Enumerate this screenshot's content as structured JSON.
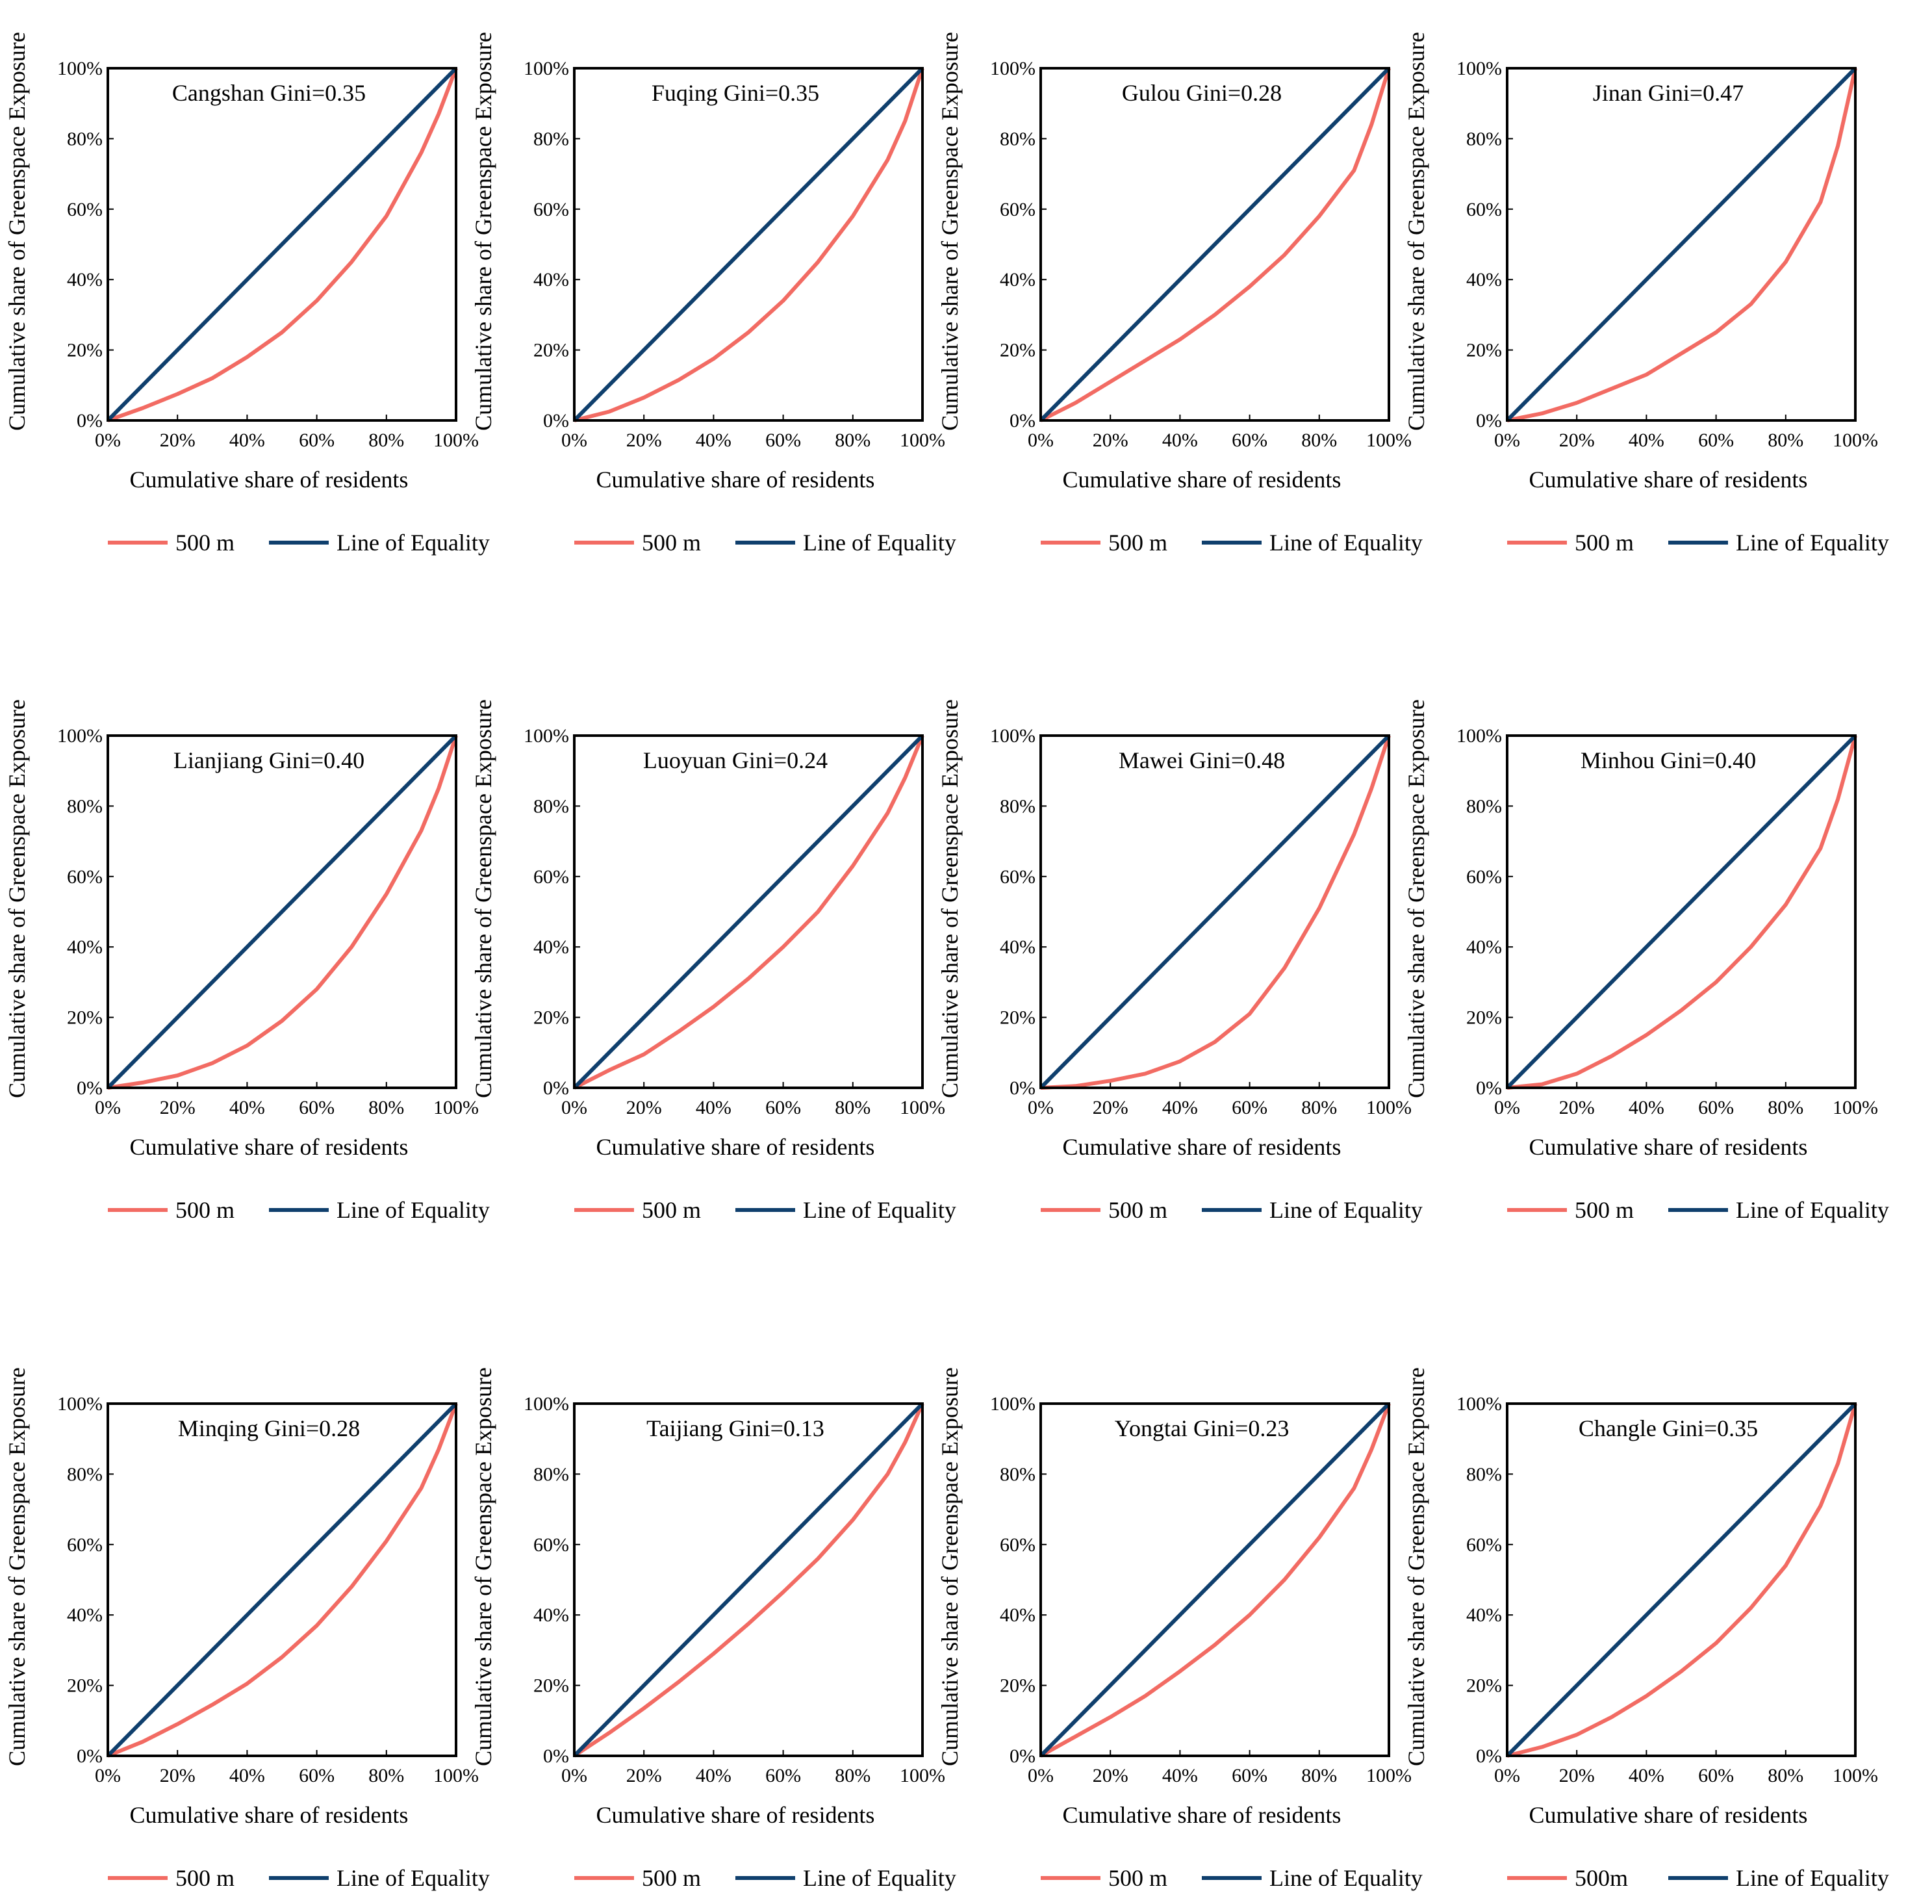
{
  "figure": {
    "colors": {
      "lorenz": "#F26B63",
      "equality": "#0F3F6D",
      "axis": "#000000",
      "background": "#ffffff"
    },
    "tick_labels": [
      "0%",
      "20%",
      "40%",
      "60%",
      "80%",
      "100%"
    ],
    "xlabel": "Cumulative share of  residents",
    "ylabel": "Cumulative share of  Greenspace Exposure",
    "legend_equality_label": "Line of  Equality"
  },
  "chart_data": [
    {
      "type": "line",
      "title": "Cangshan Gini=0.35",
      "legend_label": "500 m",
      "xlabel": "Cumulative share of  residents",
      "ylabel": "Cumulative share of  Greenspace Exposure",
      "xlim": [
        0,
        100
      ],
      "ylim": [
        0,
        100
      ],
      "legend_position": "bottom",
      "grid": false,
      "series": [
        {
          "name": "500 m",
          "x": [
            0,
            10,
            20,
            30,
            40,
            50,
            60,
            70,
            80,
            90,
            95,
            100
          ],
          "y": [
            0,
            3.5,
            7.5,
            12,
            18,
            25,
            34,
            45,
            58,
            76,
            87,
            100
          ]
        },
        {
          "name": "Line of  Equality",
          "x": [
            0,
            100
          ],
          "y": [
            0,
            100
          ]
        }
      ]
    },
    {
      "type": "line",
      "title": "Fuqing Gini=0.35",
      "legend_label": "500 m",
      "xlabel": "Cumulative share of  residents",
      "ylabel": "Cumulative share of  Greenspace Exposure",
      "xlim": [
        0,
        100
      ],
      "ylim": [
        0,
        100
      ],
      "legend_position": "bottom",
      "grid": false,
      "series": [
        {
          "name": "500 m",
          "x": [
            0,
            10,
            20,
            30,
            40,
            50,
            60,
            70,
            80,
            90,
            95,
            100
          ],
          "y": [
            0,
            2.5,
            6.5,
            11.5,
            17.5,
            25,
            34,
            45,
            58,
            74,
            85,
            100
          ]
        },
        {
          "name": "Line of  Equality",
          "x": [
            0,
            100
          ],
          "y": [
            0,
            100
          ]
        }
      ]
    },
    {
      "type": "line",
      "title": "Gulou Gini=0.28",
      "legend_label": "500 m",
      "xlabel": "Cumulative share of  residents",
      "ylabel": "Cumulative share of  Greenspace Exposure",
      "xlim": [
        0,
        100
      ],
      "ylim": [
        0,
        100
      ],
      "legend_position": "bottom",
      "grid": false,
      "series": [
        {
          "name": "500 m",
          "x": [
            0,
            10,
            20,
            30,
            40,
            50,
            60,
            70,
            80,
            90,
            95,
            100
          ],
          "y": [
            0,
            5,
            11,
            17,
            23,
            30,
            38,
            47,
            58,
            71,
            84,
            100
          ]
        },
        {
          "name": "Line of  Equality",
          "x": [
            0,
            100
          ],
          "y": [
            0,
            100
          ]
        }
      ]
    },
    {
      "type": "line",
      "title": "Jinan Gini=0.47",
      "legend_label": "500 m",
      "xlabel": "Cumulative share of  residents",
      "ylabel": "Cumulative share of  Greenspace Exposure",
      "xlim": [
        0,
        100
      ],
      "ylim": [
        0,
        100
      ],
      "legend_position": "bottom",
      "grid": false,
      "series": [
        {
          "name": "500 m",
          "x": [
            0,
            10,
            20,
            30,
            40,
            50,
            60,
            70,
            80,
            90,
            95,
            100
          ],
          "y": [
            0,
            2,
            5,
            9,
            13,
            19,
            25,
            33,
            45,
            62,
            78,
            100
          ]
        },
        {
          "name": "Line of  Equality",
          "x": [
            0,
            100
          ],
          "y": [
            0,
            100
          ]
        }
      ]
    },
    {
      "type": "line",
      "title": "Lianjiang Gini=0.40",
      "legend_label": "500 m",
      "xlabel": "Cumulative share of  residents",
      "ylabel": "Cumulative share of  Greenspace Exposure",
      "xlim": [
        0,
        100
      ],
      "ylim": [
        0,
        100
      ],
      "legend_position": "bottom",
      "grid": false,
      "series": [
        {
          "name": "500 m",
          "x": [
            0,
            10,
            20,
            30,
            40,
            50,
            60,
            70,
            80,
            90,
            95,
            100
          ],
          "y": [
            0,
            1.5,
            3.5,
            7,
            12,
            19,
            28,
            40,
            55,
            73,
            85,
            100
          ]
        },
        {
          "name": "Line of  Equality",
          "x": [
            0,
            100
          ],
          "y": [
            0,
            100
          ]
        }
      ]
    },
    {
      "type": "line",
      "title": "Luoyuan Gini=0.24",
      "legend_label": "500 m",
      "xlabel": "Cumulative share of  residents",
      "ylabel": "Cumulative share of  Greenspace Exposure",
      "xlim": [
        0,
        100
      ],
      "ylim": [
        0,
        100
      ],
      "legend_position": "bottom",
      "grid": false,
      "series": [
        {
          "name": "500 m",
          "x": [
            0,
            10,
            20,
            30,
            40,
            50,
            60,
            70,
            80,
            90,
            95,
            100
          ],
          "y": [
            0,
            5,
            9.5,
            16,
            23,
            31,
            40,
            50,
            63,
            78,
            88,
            100
          ]
        },
        {
          "name": "Line of  Equality",
          "x": [
            0,
            100
          ],
          "y": [
            0,
            100
          ]
        }
      ]
    },
    {
      "type": "line",
      "title": "Mawei Gini=0.48",
      "legend_label": "500 m",
      "xlabel": "Cumulative share of  residents",
      "ylabel": "Cumulative share of  Greenspace Exposure",
      "xlim": [
        0,
        100
      ],
      "ylim": [
        0,
        100
      ],
      "legend_position": "bottom",
      "grid": false,
      "series": [
        {
          "name": "500 m",
          "x": [
            0,
            10,
            20,
            30,
            40,
            50,
            60,
            70,
            80,
            90,
            95,
            100
          ],
          "y": [
            0,
            0.5,
            2,
            4,
            7.5,
            13,
            21,
            34,
            51,
            72,
            85,
            100
          ]
        },
        {
          "name": "Line of  Equality",
          "x": [
            0,
            100
          ],
          "y": [
            0,
            100
          ]
        }
      ]
    },
    {
      "type": "line",
      "title": "Minhou Gini=0.40",
      "legend_label": "500 m",
      "xlabel": "Cumulative share of  residents",
      "ylabel": "Cumulative share of  Greenspace Exposure",
      "xlim": [
        0,
        100
      ],
      "ylim": [
        0,
        100
      ],
      "legend_position": "bottom",
      "grid": false,
      "series": [
        {
          "name": "500 m",
          "x": [
            0,
            10,
            20,
            30,
            40,
            50,
            60,
            70,
            80,
            90,
            95,
            100
          ],
          "y": [
            0,
            1,
            4,
            9,
            15,
            22,
            30,
            40,
            52,
            68,
            82,
            100
          ]
        },
        {
          "name": "Line of  Equality",
          "x": [
            0,
            100
          ],
          "y": [
            0,
            100
          ]
        }
      ]
    },
    {
      "type": "line",
      "title": "Minqing Gini=0.28",
      "legend_label": "500 m",
      "xlabel": "Cumulative share of  residents",
      "ylabel": "Cumulative share of  Greenspace Exposure",
      "xlim": [
        0,
        100
      ],
      "ylim": [
        0,
        100
      ],
      "legend_position": "bottom",
      "grid": false,
      "series": [
        {
          "name": "500 m",
          "x": [
            0,
            10,
            20,
            30,
            40,
            50,
            60,
            70,
            80,
            90,
            95,
            100
          ],
          "y": [
            0,
            4,
            9,
            14.5,
            20.5,
            28,
            37,
            48,
            61,
            76,
            87,
            100
          ]
        },
        {
          "name": "Line of  Equality",
          "x": [
            0,
            100
          ],
          "y": [
            0,
            100
          ]
        }
      ]
    },
    {
      "type": "line",
      "title": "Taijiang Gini=0.13",
      "legend_label": "500 m",
      "xlabel": "Cumulative share of  residents",
      "ylabel": "Cumulative share of  Greenspace Exposure",
      "xlim": [
        0,
        100
      ],
      "ylim": [
        0,
        100
      ],
      "legend_position": "bottom",
      "grid": false,
      "series": [
        {
          "name": "500 m",
          "x": [
            0,
            10,
            20,
            30,
            40,
            50,
            60,
            70,
            80,
            90,
            95,
            100
          ],
          "y": [
            0,
            6.5,
            13.5,
            21,
            29,
            37.5,
            46.5,
            56,
            67,
            80,
            89,
            100
          ]
        },
        {
          "name": "Line of  Equality",
          "x": [
            0,
            100
          ],
          "y": [
            0,
            100
          ]
        }
      ]
    },
    {
      "type": "line",
      "title": "Yongtai Gini=0.23",
      "legend_label": "500 m",
      "xlabel": "Cumulative share of  residents",
      "ylabel": "Cumulative share of  Greenspace Exposure",
      "xlim": [
        0,
        100
      ],
      "ylim": [
        0,
        100
      ],
      "legend_position": "bottom",
      "grid": false,
      "series": [
        {
          "name": "500 m",
          "x": [
            0,
            10,
            20,
            30,
            40,
            50,
            60,
            70,
            80,
            90,
            95,
            100
          ],
          "y": [
            0,
            5.5,
            11,
            17,
            24,
            31.5,
            40,
            50,
            62,
            76,
            87,
            100
          ]
        },
        {
          "name": "Line of  Equality",
          "x": [
            0,
            100
          ],
          "y": [
            0,
            100
          ]
        }
      ]
    },
    {
      "type": "line",
      "title": "Changle Gini=0.35",
      "legend_label": "500m",
      "xlabel": "Cumulative share of  residents",
      "ylabel": "Cumulative share of  Greenspace Exposure",
      "xlim": [
        0,
        100
      ],
      "ylim": [
        0,
        100
      ],
      "legend_position": "bottom",
      "grid": false,
      "series": [
        {
          "name": "500 m",
          "x": [
            0,
            10,
            20,
            30,
            40,
            50,
            60,
            70,
            80,
            90,
            95,
            100
          ],
          "y": [
            0,
            2.5,
            6,
            11,
            17,
            24,
            32,
            42,
            54,
            71,
            83,
            100
          ]
        },
        {
          "name": "Line of  Equality",
          "x": [
            0,
            100
          ],
          "y": [
            0,
            100
          ]
        }
      ]
    }
  ]
}
